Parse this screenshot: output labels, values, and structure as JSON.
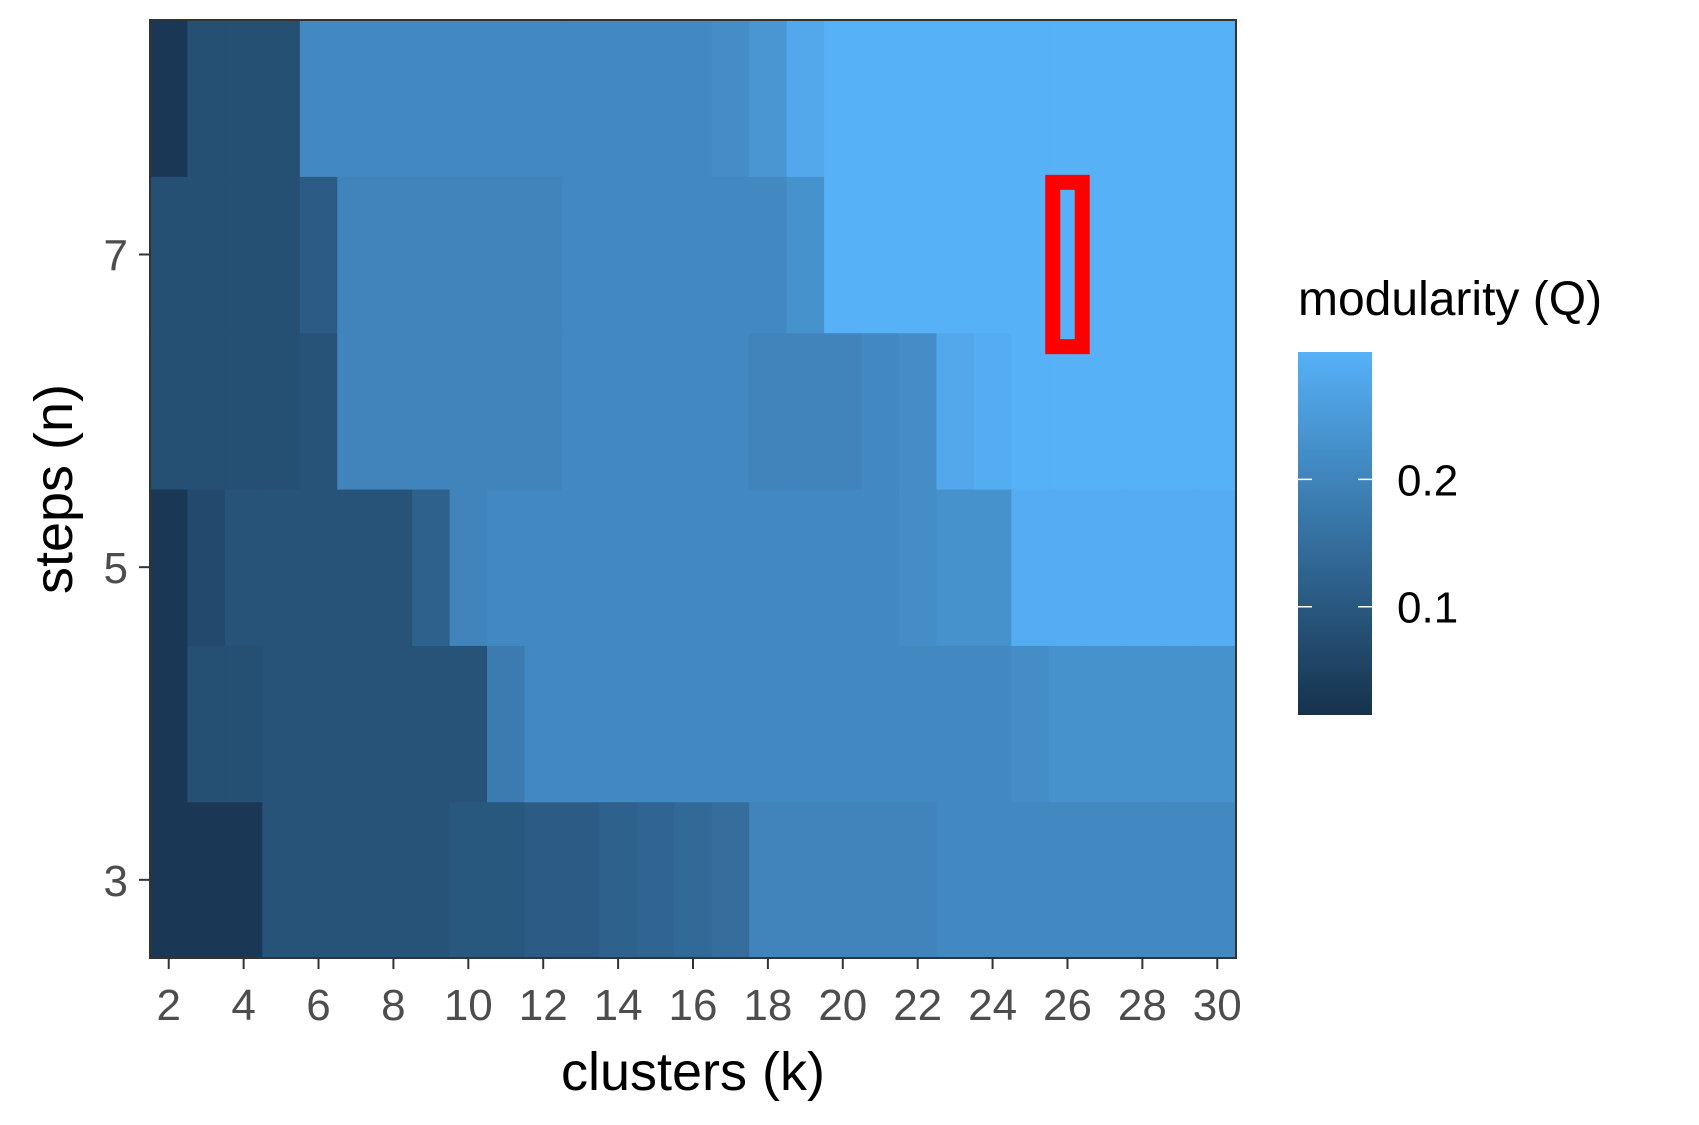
{
  "chart_data": {
    "type": "heatmap",
    "xlabel": "clusters (k)",
    "ylabel": "steps (n)",
    "x": [
      2,
      3,
      4,
      5,
      6,
      7,
      8,
      9,
      10,
      11,
      12,
      13,
      14,
      15,
      16,
      17,
      18,
      19,
      20,
      21,
      22,
      23,
      24,
      25,
      26,
      27,
      28,
      29,
      30
    ],
    "y": [
      3,
      4,
      5,
      6,
      7,
      8
    ],
    "x_ticks": [
      2,
      4,
      6,
      8,
      10,
      12,
      14,
      16,
      18,
      20,
      22,
      24,
      26,
      28,
      30
    ],
    "y_ticks": [
      3,
      5,
      7
    ],
    "xlim": [
      1.5,
      30.5
    ],
    "ylim": [
      2.5,
      8.5
    ],
    "z": [
      [
        0.03,
        0.03,
        0.03,
        0.09,
        0.09,
        0.09,
        0.09,
        0.09,
        0.1,
        0.1,
        0.11,
        0.11,
        0.12,
        0.13,
        0.14,
        0.15,
        0.2,
        0.2,
        0.2,
        0.2,
        0.2,
        0.21,
        0.21,
        0.21,
        0.21,
        0.21,
        0.21,
        0.21,
        0.21
      ],
      [
        0.03,
        0.08,
        0.08,
        0.09,
        0.09,
        0.09,
        0.09,
        0.09,
        0.09,
        0.18,
        0.21,
        0.21,
        0.21,
        0.21,
        0.21,
        0.21,
        0.21,
        0.21,
        0.21,
        0.21,
        0.21,
        0.21,
        0.21,
        0.22,
        0.23,
        0.23,
        0.23,
        0.23,
        0.23
      ],
      [
        0.03,
        0.07,
        0.09,
        0.09,
        0.09,
        0.09,
        0.09,
        0.12,
        0.2,
        0.21,
        0.21,
        0.21,
        0.21,
        0.21,
        0.21,
        0.21,
        0.21,
        0.21,
        0.21,
        0.21,
        0.22,
        0.23,
        0.23,
        0.29,
        0.29,
        0.29,
        0.29,
        0.29,
        0.29
      ],
      [
        0.08,
        0.08,
        0.08,
        0.08,
        0.09,
        0.2,
        0.2,
        0.2,
        0.2,
        0.2,
        0.2,
        0.21,
        0.21,
        0.21,
        0.21,
        0.21,
        0.2,
        0.2,
        0.2,
        0.21,
        0.22,
        0.28,
        0.29,
        0.3,
        0.3,
        0.3,
        0.3,
        0.3,
        0.3
      ],
      [
        0.08,
        0.08,
        0.08,
        0.08,
        0.11,
        0.2,
        0.2,
        0.2,
        0.2,
        0.2,
        0.2,
        0.21,
        0.21,
        0.21,
        0.21,
        0.21,
        0.21,
        0.23,
        0.3,
        0.3,
        0.3,
        0.3,
        0.3,
        0.3,
        0.3,
        0.3,
        0.3,
        0.3,
        0.3
      ],
      [
        0.03,
        0.08,
        0.08,
        0.08,
        0.21,
        0.21,
        0.21,
        0.21,
        0.21,
        0.21,
        0.21,
        0.21,
        0.21,
        0.21,
        0.21,
        0.22,
        0.24,
        0.28,
        0.3,
        0.3,
        0.3,
        0.3,
        0.3,
        0.3,
        0.3,
        0.3,
        0.3,
        0.3,
        0.3
      ]
    ],
    "color_scale": {
      "low": "#132b43",
      "high": "#56b1f7",
      "zlim": [
        0.0,
        0.3
      ]
    },
    "legend": {
      "title": "modularity (Q)",
      "ticks": [
        0.1,
        0.2
      ],
      "tick_labels": [
        "0.1",
        "0.2"
      ],
      "placement": "right"
    },
    "highlight": {
      "x": 26,
      "y": 7,
      "color": "#ff0000"
    },
    "grid": false
  }
}
